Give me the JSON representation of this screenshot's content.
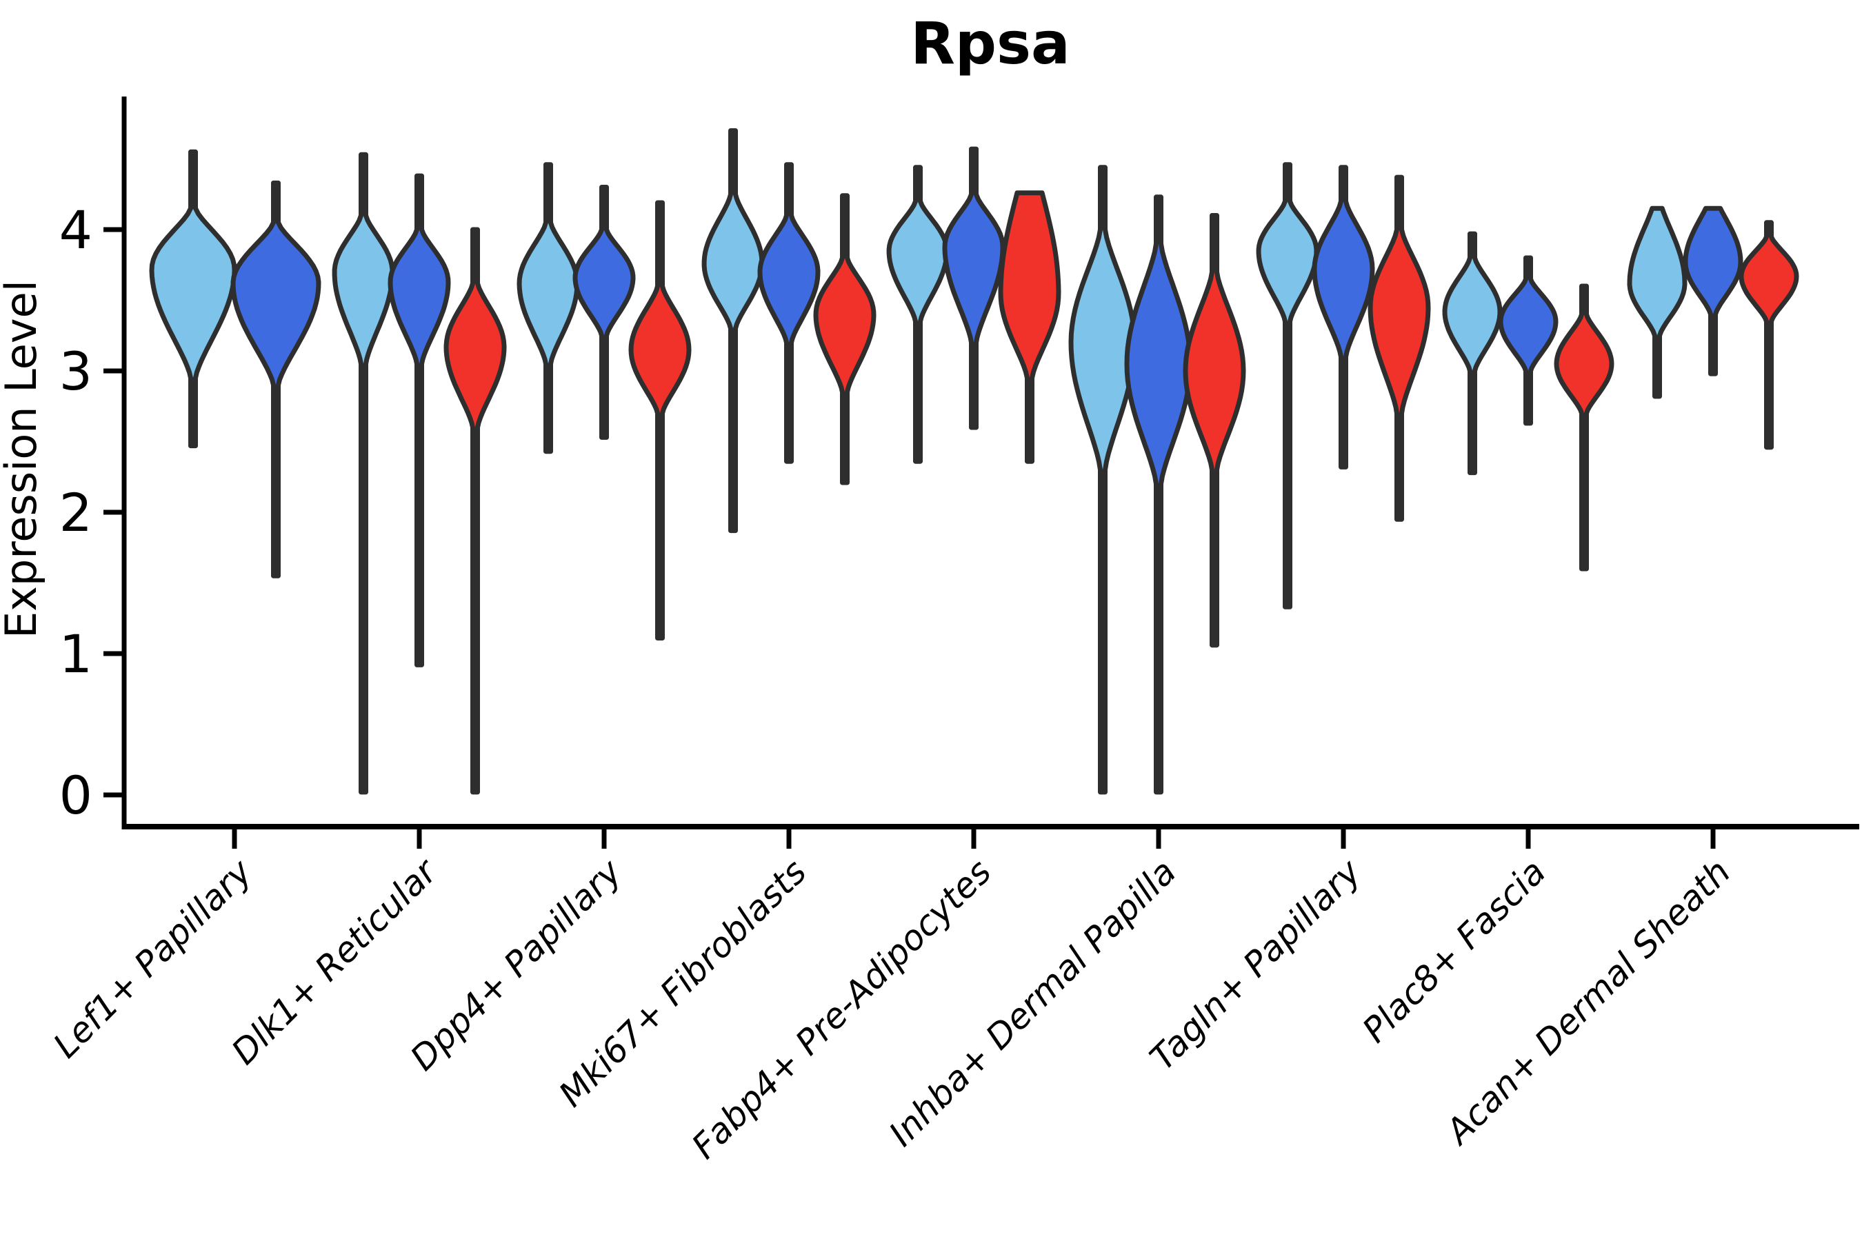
{
  "title": "Rpsa",
  "ylabel": "Expression Level",
  "chart_data": {
    "type": "violin",
    "title": "Rpsa",
    "xlabel": "",
    "ylabel": "Expression Level",
    "ylim": [
      -0.22,
      4.95
    ],
    "yticks": [
      0,
      1,
      2,
      3,
      4
    ],
    "grid": false,
    "legend": "none",
    "series": [
      {
        "name": "light-blue-series",
        "color": "#7DC3EA"
      },
      {
        "name": "royal-blue-series",
        "color": "#3E6CE0"
      },
      {
        "name": "red-series",
        "color": "#F0322B"
      }
    ],
    "outline_color": "#2E2E2E",
    "categories": [
      "Lef1+ Papillary",
      "Dlk1+ Reticular",
      "Dpp4+ Papillary",
      "Mki67+ Fibroblasts",
      "Fabp4+ Pre-Adipocytes",
      "Inhba+ Dermal Papilla",
      "Tagln+ Papillary",
      "Plac8+ Fascia",
      "Acan+ Dermal Sheath"
    ],
    "groups": [
      {
        "category": "Lef1+ Papillary",
        "violins": [
          {
            "series": 0,
            "max": 4.55,
            "body_top": 4.15,
            "peak": 3.72,
            "body_bottom": 2.95,
            "min": 2.47,
            "half_width": 60
          },
          {
            "series": 1,
            "max": 4.33,
            "body_top": 4.05,
            "peak": 3.62,
            "body_bottom": 2.9,
            "min": 1.55,
            "half_width": 62
          }
        ]
      },
      {
        "category": "Dlk1+ Reticular",
        "violins": [
          {
            "series": 0,
            "max": 4.53,
            "body_top": 4.1,
            "peak": 3.7,
            "body_bottom": 3.05,
            "min": 0.02,
            "half_width": 42
          },
          {
            "series": 1,
            "max": 4.38,
            "body_top": 4.0,
            "peak": 3.63,
            "body_bottom": 3.05,
            "min": 0.92,
            "half_width": 42
          },
          {
            "series": 2,
            "max": 4.0,
            "body_top": 3.62,
            "peak": 3.17,
            "body_bottom": 2.6,
            "min": 0.02,
            "half_width": 42
          }
        ]
      },
      {
        "category": "Dpp4+ Papillary",
        "violins": [
          {
            "series": 0,
            "max": 4.46,
            "body_top": 4.05,
            "peak": 3.62,
            "body_bottom": 3.05,
            "min": 2.43,
            "half_width": 42
          },
          {
            "series": 1,
            "max": 4.3,
            "body_top": 4.0,
            "peak": 3.66,
            "body_bottom": 3.25,
            "min": 2.53,
            "half_width": 42
          },
          {
            "series": 2,
            "max": 4.19,
            "body_top": 3.6,
            "peak": 3.15,
            "body_bottom": 2.7,
            "min": 1.11,
            "half_width": 42
          }
        ]
      },
      {
        "category": "Mki67+ Fibroblasts",
        "violins": [
          {
            "series": 0,
            "max": 4.7,
            "body_top": 4.25,
            "peak": 3.76,
            "body_bottom": 3.3,
            "min": 1.87,
            "half_width": 42
          },
          {
            "series": 1,
            "max": 4.46,
            "body_top": 4.1,
            "peak": 3.7,
            "body_bottom": 3.2,
            "min": 2.36,
            "half_width": 42
          },
          {
            "series": 2,
            "max": 4.24,
            "body_top": 3.8,
            "peak": 3.4,
            "body_bottom": 2.85,
            "min": 2.21,
            "half_width": 42
          }
        ]
      },
      {
        "category": "Fabp4+ Pre-Adipocytes",
        "violins": [
          {
            "series": 0,
            "max": 4.44,
            "body_top": 4.2,
            "peak": 3.85,
            "body_bottom": 3.35,
            "min": 2.36,
            "half_width": 42
          },
          {
            "series": 1,
            "max": 4.57,
            "body_top": 4.25,
            "peak": 3.88,
            "body_bottom": 3.2,
            "min": 2.6,
            "half_width": 42
          },
          {
            "series": 2,
            "max": 4.26,
            "body_top": 4.6,
            "peak": 3.55,
            "body_bottom": 2.95,
            "min": 2.36,
            "half_width": 42,
            "flat_top": true
          }
        ]
      },
      {
        "category": "Inhba+ Dermal Papilla",
        "violins": [
          {
            "series": 0,
            "max": 4.44,
            "body_top": 4.0,
            "peak": 3.2,
            "body_bottom": 2.3,
            "min": 0.02,
            "half_width": 46
          },
          {
            "series": 1,
            "max": 4.23,
            "body_top": 3.9,
            "peak": 3.05,
            "body_bottom": 2.2,
            "min": 0.02,
            "half_width": 46
          },
          {
            "series": 2,
            "max": 4.1,
            "body_top": 3.7,
            "peak": 3.0,
            "body_bottom": 2.3,
            "min": 1.06,
            "half_width": 42
          }
        ]
      },
      {
        "category": "Tagln+ Papillary",
        "violins": [
          {
            "series": 0,
            "max": 4.46,
            "body_top": 4.2,
            "peak": 3.85,
            "body_bottom": 3.35,
            "min": 1.33,
            "half_width": 42
          },
          {
            "series": 1,
            "max": 4.44,
            "body_top": 4.2,
            "peak": 3.72,
            "body_bottom": 3.1,
            "min": 2.32,
            "half_width": 42
          },
          {
            "series": 2,
            "max": 4.37,
            "body_top": 4.0,
            "peak": 3.45,
            "body_bottom": 2.7,
            "min": 1.95,
            "half_width": 42
          }
        ]
      },
      {
        "category": "Plac8+ Fascia",
        "violins": [
          {
            "series": 0,
            "max": 3.97,
            "body_top": 3.8,
            "peak": 3.42,
            "body_bottom": 3.0,
            "min": 2.28,
            "half_width": 40
          },
          {
            "series": 1,
            "max": 3.8,
            "body_top": 3.65,
            "peak": 3.35,
            "body_bottom": 3.0,
            "min": 2.63,
            "half_width": 40
          },
          {
            "series": 2,
            "max": 3.6,
            "body_top": 3.4,
            "peak": 3.05,
            "body_bottom": 2.7,
            "min": 1.6,
            "half_width": 40
          }
        ]
      },
      {
        "category": "Acan+ Dermal Sheath",
        "violins": [
          {
            "series": 0,
            "max": 4.15,
            "body_top": 4.22,
            "peak": 3.62,
            "body_bottom": 3.25,
            "min": 2.82,
            "half_width": 40,
            "flat_top": true
          },
          {
            "series": 1,
            "max": 4.15,
            "body_top": 4.24,
            "peak": 3.77,
            "body_bottom": 3.4,
            "min": 2.98,
            "half_width": 40,
            "flat_top": true
          },
          {
            "series": 2,
            "max": 4.05,
            "body_top": 3.95,
            "peak": 3.67,
            "body_bottom": 3.35,
            "min": 2.46,
            "half_width": 40
          }
        ]
      }
    ]
  }
}
